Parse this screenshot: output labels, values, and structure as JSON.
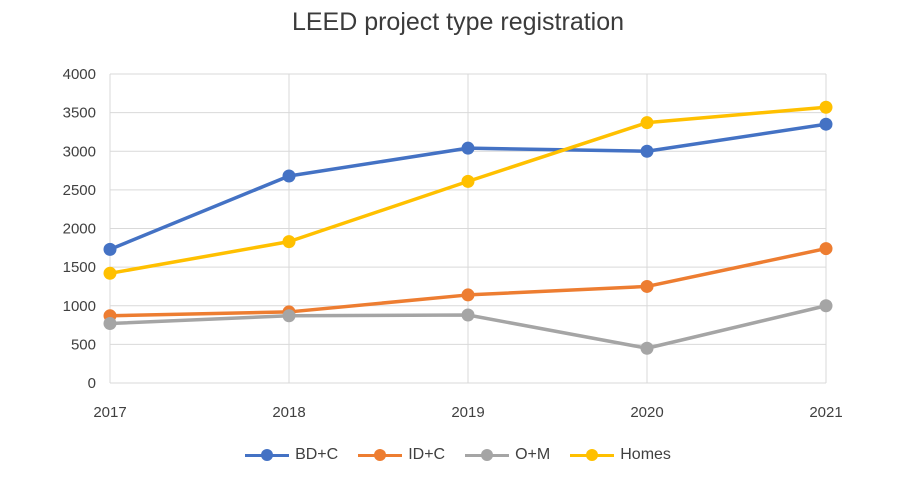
{
  "chart_data": {
    "type": "line",
    "title": "LEED project type registration",
    "xlabel": "",
    "ylabel": "",
    "categories": [
      "2017",
      "2018",
      "2019",
      "2020",
      "2021"
    ],
    "ylim": [
      0,
      4000
    ],
    "yticks": [
      "0",
      "500",
      "1000",
      "1500",
      "2000",
      "2500",
      "3000",
      "3500",
      "4000"
    ],
    "grid": true,
    "legend_position": "bottom",
    "series": [
      {
        "name": "BD+C",
        "color": "#4472C4",
        "values": [
          1730,
          2680,
          3040,
          3000,
          3350
        ]
      },
      {
        "name": "ID+C",
        "color": "#ED7D31",
        "values": [
          870,
          920,
          1140,
          1250,
          1740
        ]
      },
      {
        "name": "O+M",
        "color": "#A5A5A5",
        "values": [
          770,
          870,
          880,
          450,
          1000
        ]
      },
      {
        "name": "Homes",
        "color": "#FFC000",
        "values": [
          1420,
          1830,
          2610,
          3370,
          3570
        ]
      }
    ]
  }
}
